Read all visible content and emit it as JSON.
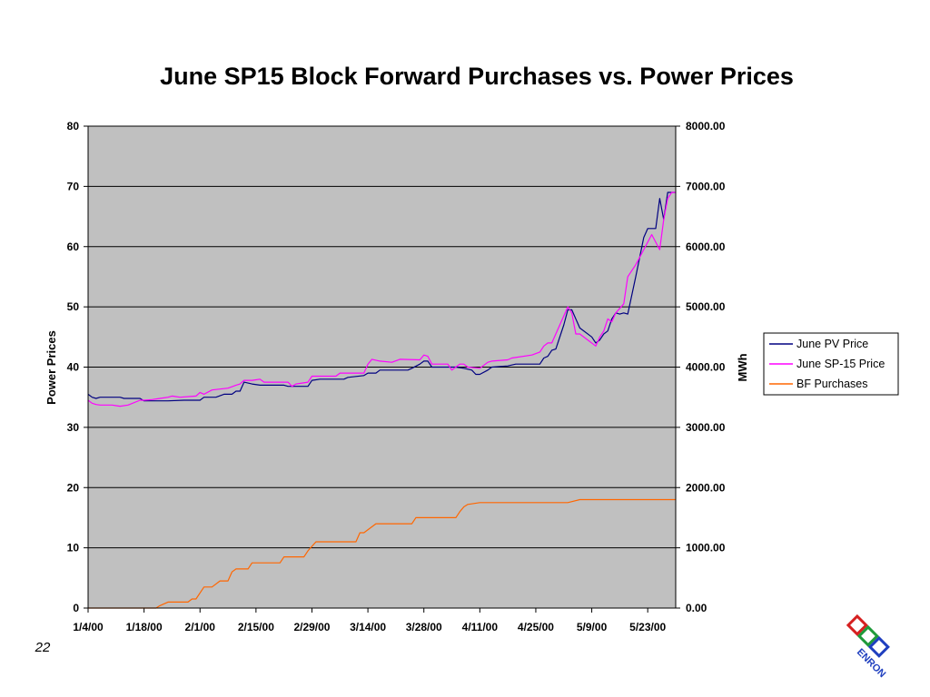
{
  "page": {
    "number": "22"
  },
  "chart_data": {
    "type": "line",
    "title": "June SP15 Block Forward Purchases vs. Power Prices",
    "ylabel": "Power Prices",
    "y2label": "MWh",
    "xlabel": "",
    "ylim": [
      0,
      80
    ],
    "y2lim": [
      0,
      8000
    ],
    "yticks": [
      "0",
      "10",
      "20",
      "30",
      "40",
      "50",
      "60",
      "70",
      "80"
    ],
    "y2ticks": [
      "0.00",
      "1000.00",
      "2000.00",
      "3000.00",
      "4000.00",
      "5000.00",
      "6000.00",
      "7000.00",
      "8000.00"
    ],
    "xticks": [
      "1/4/00",
      "1/18/00",
      "2/1/00",
      "2/15/00",
      "2/29/00",
      "3/14/00",
      "3/28/00",
      "4/11/00",
      "4/25/00",
      "5/9/00",
      "5/23/00"
    ],
    "xlim": [
      "2000-01-04",
      "2000-05-30"
    ],
    "grid": true,
    "legend_position": "right",
    "background": "#c0c0c0",
    "series": [
      {
        "name": "June PV Price",
        "axis": "left",
        "color": "#000080",
        "points": [
          [
            "2000-01-04",
            35.5
          ],
          [
            "2000-01-05",
            35.0
          ],
          [
            "2000-01-06",
            34.8
          ],
          [
            "2000-01-07",
            35.0
          ],
          [
            "2000-01-10",
            35.0
          ],
          [
            "2000-01-12",
            35.0
          ],
          [
            "2000-01-13",
            34.8
          ],
          [
            "2000-01-17",
            34.8
          ],
          [
            "2000-01-18",
            34.4
          ],
          [
            "2000-01-20",
            34.4
          ],
          [
            "2000-01-24",
            34.4
          ],
          [
            "2000-01-28",
            34.5
          ],
          [
            "2000-02-01",
            34.5
          ],
          [
            "2000-02-02",
            35.0
          ],
          [
            "2000-02-05",
            35.0
          ],
          [
            "2000-02-07",
            35.5
          ],
          [
            "2000-02-09",
            35.5
          ],
          [
            "2000-02-10",
            36.0
          ],
          [
            "2000-02-11",
            36.0
          ],
          [
            "2000-02-12",
            37.5
          ],
          [
            "2000-02-14",
            37.2
          ],
          [
            "2000-02-16",
            37.0
          ],
          [
            "2000-02-22",
            37.0
          ],
          [
            "2000-02-23",
            36.8
          ],
          [
            "2000-02-28",
            36.8
          ],
          [
            "2000-02-29",
            37.8
          ],
          [
            "2000-03-02",
            38.0
          ],
          [
            "2000-03-08",
            38.0
          ],
          [
            "2000-03-09",
            38.3
          ],
          [
            "2000-03-13",
            38.6
          ],
          [
            "2000-03-14",
            39.0
          ],
          [
            "2000-03-16",
            39.0
          ],
          [
            "2000-03-17",
            39.5
          ],
          [
            "2000-03-24",
            39.5
          ],
          [
            "2000-03-25",
            39.8
          ],
          [
            "2000-03-27",
            40.5
          ],
          [
            "2000-03-28",
            41.0
          ],
          [
            "2000-03-29",
            41.0
          ],
          [
            "2000-03-30",
            40.0
          ],
          [
            "2000-04-05",
            40.0
          ],
          [
            "2000-04-07",
            39.8
          ],
          [
            "2000-04-09",
            39.5
          ],
          [
            "2000-04-10",
            38.8
          ],
          [
            "2000-04-11",
            38.8
          ],
          [
            "2000-04-13",
            39.5
          ],
          [
            "2000-04-14",
            40.0
          ],
          [
            "2000-04-18",
            40.2
          ],
          [
            "2000-04-20",
            40.5
          ],
          [
            "2000-04-26",
            40.5
          ],
          [
            "2000-04-27",
            41.5
          ],
          [
            "2000-04-28",
            41.8
          ],
          [
            "2000-04-29",
            42.8
          ],
          [
            "2000-04-30",
            43.0
          ],
          [
            "2000-05-02",
            47.0
          ],
          [
            "2000-05-03",
            49.5
          ],
          [
            "2000-05-04",
            49.5
          ],
          [
            "2000-05-06",
            46.5
          ],
          [
            "2000-05-09",
            45.0
          ],
          [
            "2000-05-10",
            44.0
          ],
          [
            "2000-05-11",
            44.5
          ],
          [
            "2000-05-12",
            45.5
          ],
          [
            "2000-05-13",
            46.0
          ],
          [
            "2000-05-14",
            48.0
          ],
          [
            "2000-05-15",
            49.0
          ],
          [
            "2000-05-16",
            48.8
          ],
          [
            "2000-05-17",
            49.0
          ],
          [
            "2000-05-18",
            48.8
          ],
          [
            "2000-05-20",
            55.0
          ],
          [
            "2000-05-22",
            61.5
          ],
          [
            "2000-05-23",
            63.0
          ],
          [
            "2000-05-25",
            63.0
          ],
          [
            "2000-05-26",
            68.0
          ],
          [
            "2000-05-27",
            64.5
          ],
          [
            "2000-05-28",
            69.0
          ],
          [
            "2000-05-29",
            69.0
          ],
          [
            "2000-05-30",
            69.0
          ]
        ]
      },
      {
        "name": "June SP-15 Price",
        "axis": "left",
        "color": "#ff00ff",
        "points": [
          [
            "2000-01-04",
            34.5
          ],
          [
            "2000-01-05",
            34.0
          ],
          [
            "2000-01-06",
            33.8
          ],
          [
            "2000-01-07",
            33.7
          ],
          [
            "2000-01-10",
            33.7
          ],
          [
            "2000-01-12",
            33.5
          ],
          [
            "2000-01-14",
            33.7
          ],
          [
            "2000-01-17",
            34.5
          ],
          [
            "2000-01-18",
            34.5
          ],
          [
            "2000-01-20",
            34.6
          ],
          [
            "2000-01-22",
            34.8
          ],
          [
            "2000-01-24",
            35.0
          ],
          [
            "2000-01-25",
            35.2
          ],
          [
            "2000-01-27",
            35.0
          ],
          [
            "2000-01-31",
            35.2
          ],
          [
            "2000-02-01",
            35.8
          ],
          [
            "2000-02-02",
            35.5
          ],
          [
            "2000-02-04",
            36.2
          ],
          [
            "2000-02-08",
            36.5
          ],
          [
            "2000-02-10",
            37.0
          ],
          [
            "2000-02-11",
            37.2
          ],
          [
            "2000-02-12",
            37.8
          ],
          [
            "2000-02-14",
            37.8
          ],
          [
            "2000-02-16",
            38.0
          ],
          [
            "2000-02-17",
            37.5
          ],
          [
            "2000-02-21",
            37.5
          ],
          [
            "2000-02-23",
            37.5
          ],
          [
            "2000-02-24",
            36.8
          ],
          [
            "2000-02-25",
            37.2
          ],
          [
            "2000-02-28",
            37.5
          ],
          [
            "2000-02-29",
            38.5
          ],
          [
            "2000-03-06",
            38.5
          ],
          [
            "2000-03-07",
            39.0
          ],
          [
            "2000-03-13",
            39.0
          ],
          [
            "2000-03-14",
            40.5
          ],
          [
            "2000-03-15",
            41.3
          ],
          [
            "2000-03-17",
            41.0
          ],
          [
            "2000-03-20",
            40.8
          ],
          [
            "2000-03-22",
            41.3
          ],
          [
            "2000-03-27",
            41.2
          ],
          [
            "2000-03-28",
            42.0
          ],
          [
            "2000-03-29",
            41.8
          ],
          [
            "2000-03-30",
            40.5
          ],
          [
            "2000-04-03",
            40.5
          ],
          [
            "2000-04-04",
            39.5
          ],
          [
            "2000-04-05",
            40.0
          ],
          [
            "2000-04-06",
            40.5
          ],
          [
            "2000-04-07",
            40.5
          ],
          [
            "2000-04-08",
            40.0
          ],
          [
            "2000-04-11",
            39.8
          ],
          [
            "2000-04-13",
            40.8
          ],
          [
            "2000-04-14",
            41.0
          ],
          [
            "2000-04-18",
            41.2
          ],
          [
            "2000-04-19",
            41.5
          ],
          [
            "2000-04-24",
            42.0
          ],
          [
            "2000-04-26",
            42.5
          ],
          [
            "2000-04-27",
            43.5
          ],
          [
            "2000-04-28",
            44.0
          ],
          [
            "2000-04-29",
            44.0
          ],
          [
            "2000-05-03",
            50.0
          ],
          [
            "2000-05-04",
            49.0
          ],
          [
            "2000-05-05",
            45.5
          ],
          [
            "2000-05-06",
            45.5
          ],
          [
            "2000-05-10",
            43.5
          ],
          [
            "2000-05-11",
            45.0
          ],
          [
            "2000-05-12",
            46.0
          ],
          [
            "2000-05-13",
            48.0
          ],
          [
            "2000-05-14",
            47.5
          ],
          [
            "2000-05-15",
            49.0
          ],
          [
            "2000-05-17",
            50.5
          ],
          [
            "2000-05-18",
            55.0
          ],
          [
            "2000-05-20",
            57.0
          ],
          [
            "2000-05-22",
            59.5
          ],
          [
            "2000-05-24",
            62.0
          ],
          [
            "2000-05-26",
            59.5
          ],
          [
            "2000-05-27",
            64.5
          ],
          [
            "2000-05-28",
            68.0
          ],
          [
            "2000-05-29",
            69.0
          ],
          [
            "2000-05-30",
            69.0
          ]
        ]
      },
      {
        "name": "BF Purchases",
        "axis": "right",
        "color": "#ff6600",
        "points": [
          [
            "2000-01-04",
            0
          ],
          [
            "2000-01-21",
            0
          ],
          [
            "2000-01-22",
            40
          ],
          [
            "2000-01-24",
            100
          ],
          [
            "2000-01-29",
            100
          ],
          [
            "2000-01-30",
            150
          ],
          [
            "2000-01-31",
            150
          ],
          [
            "2000-02-02",
            350
          ],
          [
            "2000-02-04",
            350
          ],
          [
            "2000-02-06",
            450
          ],
          [
            "2000-02-08",
            450
          ],
          [
            "2000-02-09",
            600
          ],
          [
            "2000-02-10",
            650
          ],
          [
            "2000-02-13",
            650
          ],
          [
            "2000-02-14",
            750
          ],
          [
            "2000-02-21",
            750
          ],
          [
            "2000-02-22",
            850
          ],
          [
            "2000-02-27",
            850
          ],
          [
            "2000-02-28",
            950
          ],
          [
            "2000-03-01",
            1100
          ],
          [
            "2000-03-11",
            1100
          ],
          [
            "2000-03-12",
            1250
          ],
          [
            "2000-03-13",
            1250
          ],
          [
            "2000-03-16",
            1400
          ],
          [
            "2000-03-25",
            1400
          ],
          [
            "2000-03-26",
            1500
          ],
          [
            "2000-04-05",
            1500
          ],
          [
            "2000-04-06",
            1600
          ],
          [
            "2000-04-07",
            1680
          ],
          [
            "2000-04-08",
            1720
          ],
          [
            "2000-04-11",
            1750
          ],
          [
            "2000-04-20",
            1750
          ],
          [
            "2000-04-30",
            1750
          ],
          [
            "2000-05-03",
            1750
          ],
          [
            "2000-05-06",
            1800
          ],
          [
            "2000-05-30",
            1800
          ]
        ]
      }
    ]
  }
}
